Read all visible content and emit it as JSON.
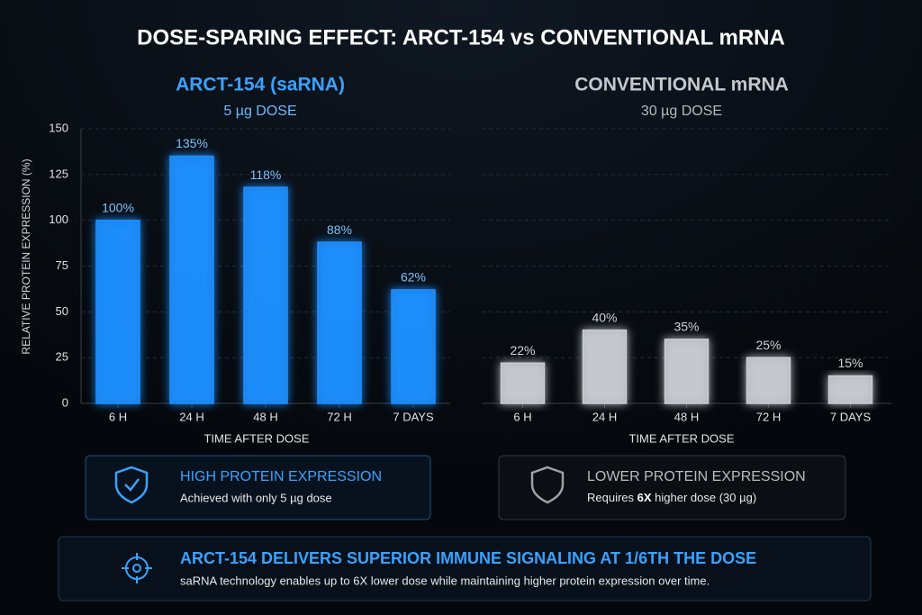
{
  "title": "DOSE-SPARING EFFECT: ARCT-154 vs CONVENTIONAL mRNA",
  "chart_data": [
    {
      "type": "bar",
      "title": "ARCT-154 (saRNA)",
      "subtitle": "5 µg DOSE",
      "categories": [
        "6 H",
        "24 H",
        "48 H",
        "72 H",
        "7 DAYS"
      ],
      "values": [
        100,
        135,
        118,
        88,
        62
      ],
      "value_labels": [
        "100%",
        "135%",
        "118%",
        "88%",
        "62%"
      ],
      "color": "#1e8fff",
      "xlabel": "TIME AFTER DOSE",
      "ylabel": "RELATIVE PROTEIN EXPRESSION (%)",
      "ylim": [
        0,
        150
      ],
      "yticks": [
        0,
        25,
        50,
        75,
        100,
        125,
        150
      ],
      "grid": true
    },
    {
      "type": "bar",
      "title": "CONVENTIONAL mRNA",
      "subtitle": "30 µg DOSE",
      "categories": [
        "6 H",
        "24 H",
        "48 H",
        "72 H",
        "7 DAYS"
      ],
      "values": [
        22,
        40,
        35,
        25,
        15
      ],
      "value_labels": [
        "22%",
        "40%",
        "35%",
        "25%",
        "15%"
      ],
      "color": "#c9cdd2",
      "xlabel": "TIME AFTER DOSE",
      "grid": true
    }
  ],
  "callouts": [
    {
      "title": "HIGH PROTEIN EXPRESSION",
      "text": "Achieved with only 5 µg dose"
    },
    {
      "title": "LOWER PROTEIN EXPRESSION",
      "text": [
        "Requires ",
        "6X",
        " higher dose (30 µg)"
      ]
    }
  ],
  "summary": {
    "title": "ARCT-154 DELIVERS SUPERIOR IMMUNE SIGNALING AT 1/6TH THE DOSE",
    "text": "saRNA technology enables up to 6X lower dose while maintaining higher protein expression over time."
  }
}
